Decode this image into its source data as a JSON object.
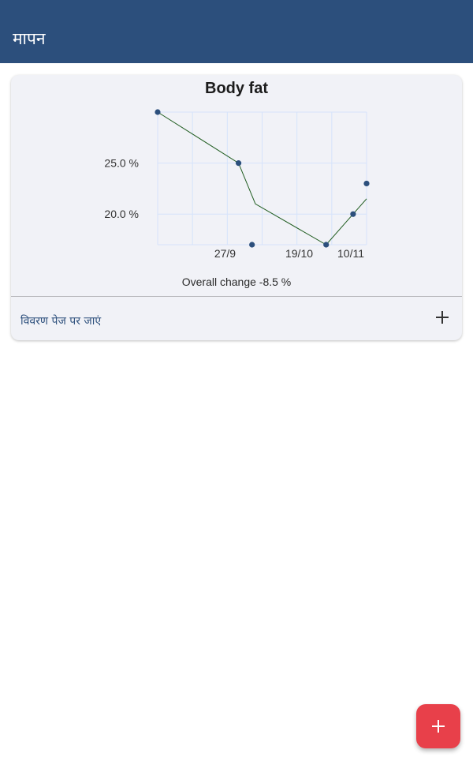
{
  "app_bar": {
    "title": "मापन"
  },
  "measurement_card": {
    "overall_change_label": "Overall change -8.5 %",
    "details_link_label": "विवरण पेज पर जाएं",
    "add_entry_icon": "plus-icon"
  },
  "fab": {
    "icon": "plus-icon"
  },
  "colors": {
    "app_bar": "#2c4f7c",
    "card_background": "#f1f2f7",
    "line": "#1f5c1f",
    "point": "#2c4f7c",
    "grid": "#d6e3fb",
    "fab": "#e8404a"
  },
  "chart_data": {
    "type": "line",
    "title": "Body fat",
    "unit": "%",
    "x_tick_labels": [
      "27/9",
      "19/10",
      "10/11"
    ],
    "y_tick_labels": [
      "25.0 %",
      "20.0 %"
    ],
    "y_ticks": [
      25.0,
      20.0
    ],
    "ylim": [
      17.0,
      30.0
    ],
    "x_range_days": [
      0,
      62
    ],
    "x_tick_days": [
      20,
      42,
      64
    ],
    "grid": true,
    "points": [
      {
        "day": 0,
        "value": 30.0
      },
      {
        "day": 24,
        "value": 25.0
      },
      {
        "day": 28,
        "value": 17.0
      },
      {
        "day": 50,
        "value": 17.0
      },
      {
        "day": 58,
        "value": 20.0
      },
      {
        "day": 63,
        "value": 23.0
      }
    ],
    "trend_line": [
      {
        "day": 0,
        "value": 30.0
      },
      {
        "day": 24,
        "value": 25.0
      },
      {
        "day": 29,
        "value": 21.0
      },
      {
        "day": 50,
        "value": 17.0
      },
      {
        "day": 58,
        "value": 20.0
      },
      {
        "day": 63,
        "value": 21.5
      }
    ]
  }
}
